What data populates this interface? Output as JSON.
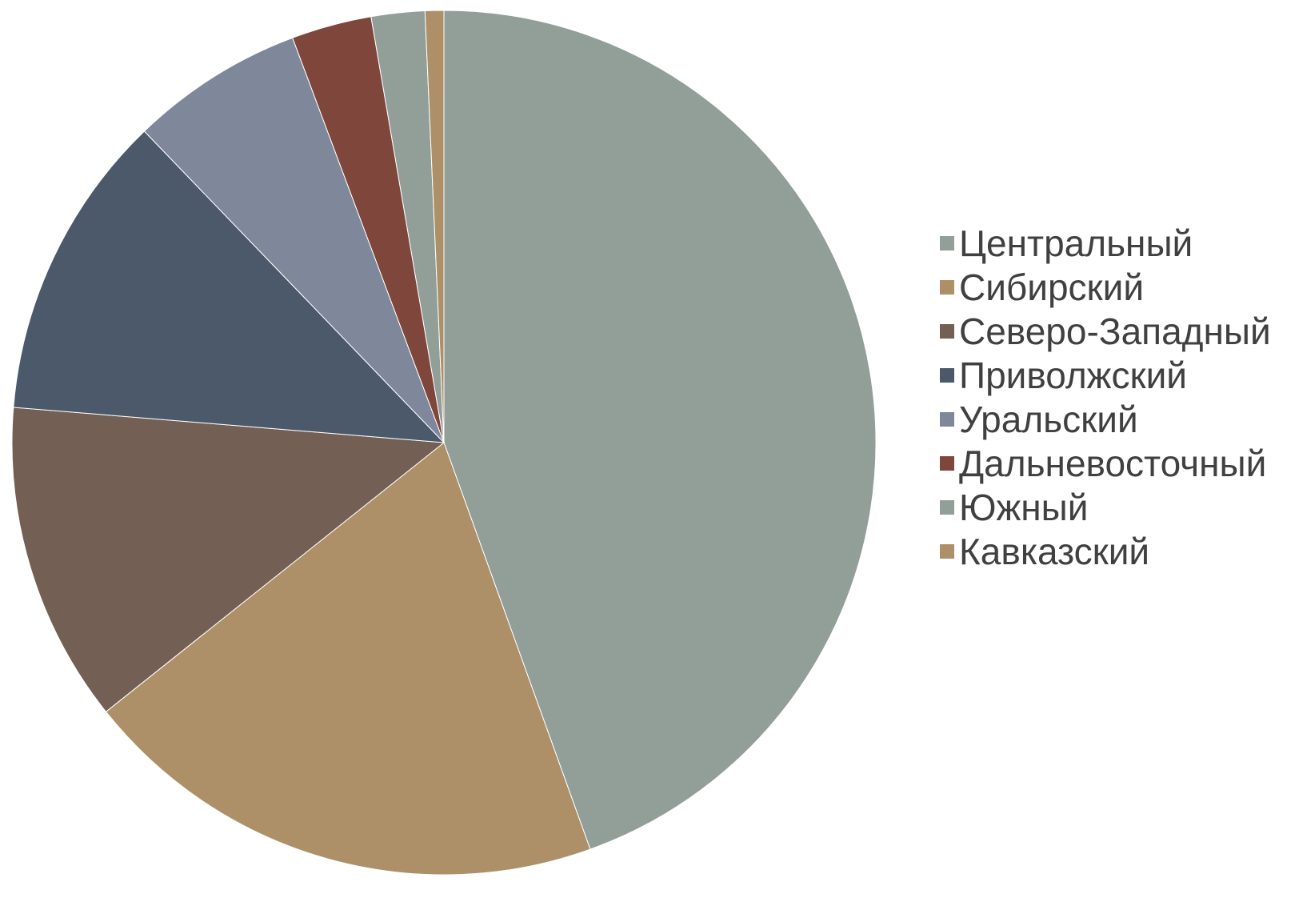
{
  "chart_data": {
    "type": "pie",
    "title": "",
    "categories": [
      "Центральный",
      "Сибирский",
      "Северо-Западный",
      "Приволжский",
      "Уральский",
      "Дальневосточный",
      "Южный",
      "Кавказский"
    ],
    "values": [
      44.5,
      19.8,
      12.0,
      11.5,
      6.5,
      3.0,
      2.0,
      0.7
    ],
    "colors": [
      "#929f98",
      "#ad9068",
      "#735f53",
      "#4b596a",
      "#7f889b",
      "#7f463c",
      "#929f98",
      "#ad9068"
    ],
    "start_angle_deg": 0,
    "direction": "clockwise",
    "legend_position": "right"
  }
}
